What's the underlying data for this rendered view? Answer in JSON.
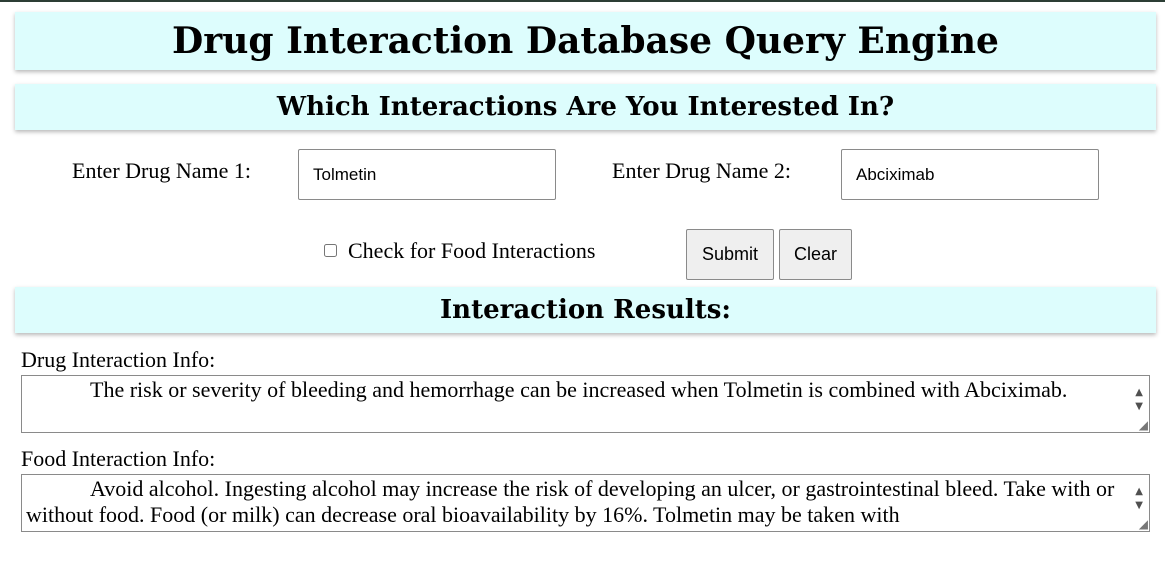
{
  "header": {
    "title": "Drug Interaction Database Query Engine",
    "subtitle": "Which Interactions Are You Interested In?"
  },
  "form": {
    "drug1_label": "Enter Drug Name 1:",
    "drug1_value": "Tolmetin",
    "drug2_label": "Enter Drug Name 2:",
    "drug2_value": "Abciximab",
    "food_checkbox_label": "Check for Food Interactions",
    "food_checkbox_checked": false,
    "submit_label": "Submit",
    "clear_label": "Clear"
  },
  "results": {
    "title": "Interaction Results:",
    "drug_label": "Drug Interaction Info:",
    "drug_text": "The risk or severity of bleeding and hemorrhage can be increased when Tolmetin is combined with Abciximab.",
    "food_label": "Food Interaction Info:",
    "food_text": "Avoid alcohol. Ingesting alcohol may increase the risk of developing an ulcer, or gastrointestinal bleed. Take with or without food. Food (or milk) can decrease oral bioavailability by 16%. Tolmetin may be taken with"
  },
  "icons": {
    "scroll_up": "▲",
    "scroll_down": "▼",
    "resize": "◢"
  },
  "colors": {
    "banner_background": "#ddfdfd",
    "top_line": "#2c3e35"
  }
}
